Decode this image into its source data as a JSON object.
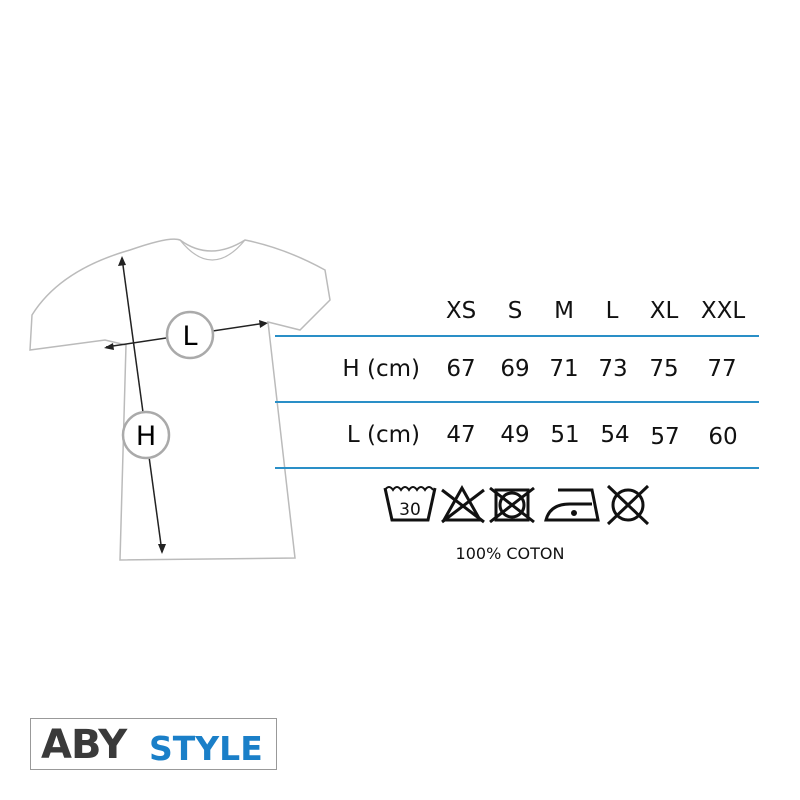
{
  "table": {
    "sizes": [
      "XS",
      "S",
      "M",
      "L",
      "XL",
      "XXL"
    ],
    "rows": [
      {
        "label": "H (cm)",
        "values": [
          "67",
          "69",
          "71",
          "73",
          "75",
          "77"
        ]
      },
      {
        "label": "L (cm)",
        "values": [
          "47",
          "49",
          "51",
          "54",
          "57",
          "60"
        ]
      }
    ],
    "line_color": "#2a8fc7"
  },
  "diagram": {
    "width_label": "L",
    "height_label": "H"
  },
  "care": {
    "icons": [
      "wash-30-icon",
      "no-bleach-icon",
      "no-tumble-dry-icon",
      "iron-low-icon",
      "no-dry-clean-icon"
    ],
    "wash_temp": "30",
    "material": "100% COTON"
  },
  "logo": {
    "part1": "ABY",
    "part2": "STYLE",
    "color1": "#3a3a3a",
    "color2": "#1a7fc8"
  }
}
